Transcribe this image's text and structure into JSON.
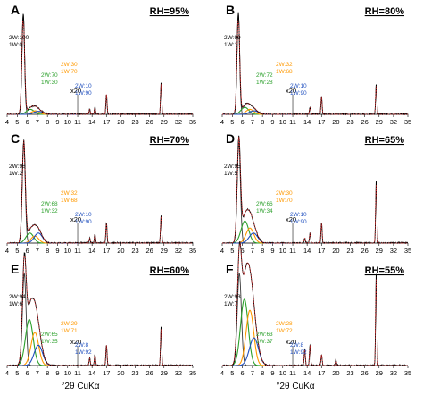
{
  "colors": {
    "data": "#000000",
    "fit": "#d62728",
    "wl2w": "#2ca02c",
    "wl1w": "#ff9900",
    "wl0w": "#1f4fbf",
    "basal": "#3a3a3a",
    "sep": "#888888"
  },
  "chart_data": [
    {
      "type": "line",
      "panel": "A",
      "title": "RH=95%",
      "xlabel": "",
      "ylabel": "",
      "xlim": [
        4,
        35
      ],
      "break_after": 11,
      "ticks_left": [
        4,
        5,
        6,
        7,
        8,
        9,
        10,
        11
      ],
      "ticks_right": [
        11,
        14,
        17,
        20,
        23,
        26,
        29,
        32,
        35
      ],
      "scale_label": "x20",
      "annotations": [
        {
          "lines": [
            "2W:100",
            "1W:0"
          ],
          "color": "data"
        },
        {
          "lines": [
            "2W:70",
            "1W:30"
          ],
          "color": "wl2w"
        },
        {
          "lines": [
            "2W:30",
            "1W:70"
          ],
          "color": "wl1w"
        },
        {
          "lines": [
            "2W:10",
            "1W:90"
          ],
          "color": "wl0w"
        }
      ],
      "peaks": [
        {
          "name": "2W:100 1W:0",
          "center": 5.6,
          "amp": 1.0,
          "width": 0.13
        },
        {
          "name": "2W:70 1W:30",
          "center": 6.3,
          "amp": 0.05,
          "width": 0.38
        },
        {
          "name": "2W:30 1W:70",
          "center": 6.8,
          "amp": 0.035,
          "width": 0.38
        },
        {
          "name": "2W:10 1W:90",
          "center": 7.1,
          "amp": 0.03,
          "width": 0.45
        }
      ],
      "hk_peaks": [
        {
          "center": 13.5,
          "amp": 0.05
        },
        {
          "center": 14.6,
          "amp": 0.07
        },
        {
          "center": 17.0,
          "amp": 0.2
        },
        {
          "center": 28.4,
          "amp": 0.32
        }
      ]
    },
    {
      "type": "line",
      "panel": "B",
      "title": "RH=80%",
      "xlabel": "",
      "ylabel": "",
      "xlim": [
        4,
        35
      ],
      "break_after": 11,
      "ticks_left": [
        4,
        5,
        6,
        7,
        8,
        9,
        10,
        11
      ],
      "ticks_right": [
        11,
        14,
        17,
        20,
        23,
        26,
        29,
        32,
        35
      ],
      "scale_label": "x20",
      "annotations": [
        {
          "lines": [
            "2W:99",
            "1W:1"
          ],
          "color": "data"
        },
        {
          "lines": [
            "2W:72",
            "1W:28"
          ],
          "color": "wl2w"
        },
        {
          "lines": [
            "2W:32",
            "1W:68"
          ],
          "color": "wl1w"
        },
        {
          "lines": [
            "2W:10",
            "1W:90"
          ],
          "color": "wl0w"
        }
      ],
      "peaks": [
        {
          "name": "2W:99 1W:1",
          "center": 5.6,
          "amp": 1.0,
          "width": 0.13
        },
        {
          "name": "2W:72 1W:28",
          "center": 6.25,
          "amp": 0.07,
          "width": 0.38
        },
        {
          "name": "2W:32 1W:68",
          "center": 6.75,
          "amp": 0.05,
          "width": 0.38
        },
        {
          "name": "2W:10 1W:90",
          "center": 7.15,
          "amp": 0.035,
          "width": 0.45
        }
      ],
      "hk_peaks": [
        {
          "center": 14.6,
          "amp": 0.07
        },
        {
          "center": 17.0,
          "amp": 0.18
        },
        {
          "center": 28.4,
          "amp": 0.3
        }
      ]
    },
    {
      "type": "line",
      "panel": "C",
      "title": "RH=70%",
      "xlabel": "",
      "ylabel": "",
      "xlim": [
        4,
        35
      ],
      "break_after": 11,
      "ticks_left": [
        4,
        5,
        6,
        7,
        8,
        9,
        10,
        11
      ],
      "ticks_right": [
        11,
        14,
        17,
        20,
        23,
        26,
        29,
        32,
        35
      ],
      "scale_label": "x20",
      "annotations": [
        {
          "lines": [
            "2W:98",
            "1W:2"
          ],
          "color": "data"
        },
        {
          "lines": [
            "2W:68",
            "1W:32"
          ],
          "color": "wl2w"
        },
        {
          "lines": [
            "2W:32",
            "1W:68"
          ],
          "color": "wl1w"
        },
        {
          "lines": [
            "2W:10",
            "1W:90"
          ],
          "color": "wl0w"
        }
      ],
      "peaks": [
        {
          "name": "2W:98 1W:2",
          "center": 5.65,
          "amp": 1.0,
          "width": 0.15
        },
        {
          "name": "2W:68 1W:32",
          "center": 6.25,
          "amp": 0.1,
          "width": 0.38
        },
        {
          "name": "2W:32 1W:68",
          "center": 6.75,
          "amp": 0.07,
          "width": 0.38
        },
        {
          "name": "2W:10 1W:90",
          "center": 7.1,
          "amp": 0.1,
          "width": 0.4
        }
      ],
      "hk_peaks": [
        {
          "center": 13.5,
          "amp": 0.05
        },
        {
          "center": 14.6,
          "amp": 0.09
        },
        {
          "center": 17.0,
          "amp": 0.2
        },
        {
          "center": 28.4,
          "amp": 0.28
        }
      ]
    },
    {
      "type": "line",
      "panel": "D",
      "title": "RH=65%",
      "xlabel": "",
      "ylabel": "",
      "xlim": [
        4,
        35
      ],
      "break_after": 11,
      "ticks_left": [
        4,
        5,
        6,
        7,
        8,
        9,
        10,
        11
      ],
      "ticks_right": [
        11,
        14,
        17,
        20,
        23,
        26,
        29,
        32,
        35
      ],
      "scale_label": "x20",
      "annotations": [
        {
          "lines": [
            "2W:95",
            "1W:5"
          ],
          "color": "data"
        },
        {
          "lines": [
            "2W:66",
            "1W:34"
          ],
          "color": "wl2w"
        },
        {
          "lines": [
            "2W:30",
            "1W:70"
          ],
          "color": "wl1w"
        },
        {
          "lines": [
            "2W:10",
            "1W:90"
          ],
          "color": "wl0w"
        }
      ],
      "peaks": [
        {
          "name": "2W:95 1W:5",
          "center": 5.65,
          "amp": 1.0,
          "width": 0.16
        },
        {
          "name": "2W:66 1W:34",
          "center": 6.25,
          "amp": 0.22,
          "width": 0.38
        },
        {
          "name": "2W:30 1W:70",
          "center": 6.75,
          "amp": 0.15,
          "width": 0.38
        },
        {
          "name": "2W:10 1W:90",
          "center": 7.1,
          "amp": 0.1,
          "width": 0.42
        }
      ],
      "hk_peaks": [
        {
          "center": 13.5,
          "amp": 0.05
        },
        {
          "center": 14.6,
          "amp": 0.1
        },
        {
          "center": 17.0,
          "amp": 0.2
        },
        {
          "center": 28.4,
          "amp": 0.62
        }
      ]
    },
    {
      "type": "line",
      "panel": "E",
      "title": "RH=60%",
      "xlabel": "°2θ CuKα",
      "ylabel": "",
      "xlim": [
        4,
        35
      ],
      "break_after": 11,
      "ticks_left": [
        4,
        5,
        6,
        7,
        8,
        9,
        10,
        11
      ],
      "ticks_right": [
        11,
        14,
        17,
        20,
        23,
        26,
        29,
        32,
        35
      ],
      "scale_label": "x20",
      "annotations": [
        {
          "lines": [
            "2W:94",
            "1W:6"
          ],
          "color": "data"
        },
        {
          "lines": [
            "2W:65",
            "1W:35"
          ],
          "color": "wl2w"
        },
        {
          "lines": [
            "2W:29",
            "1W:71"
          ],
          "color": "wl1w"
        },
        {
          "lines": [
            "2W:8",
            "1W:92"
          ],
          "color": "wl0w"
        }
      ],
      "peaks": [
        {
          "name": "2W:94 1W:6",
          "center": 5.7,
          "amp": 1.0,
          "width": 0.18
        },
        {
          "name": "2W:65 1W:35",
          "center": 6.2,
          "amp": 0.5,
          "width": 0.38
        },
        {
          "name": "2W:29 1W:71",
          "center": 6.75,
          "amp": 0.36,
          "width": 0.38
        },
        {
          "name": "2W:8 1W:92",
          "center": 7.1,
          "amp": 0.22,
          "width": 0.42
        }
      ],
      "hk_peaks": [
        {
          "center": 13.5,
          "amp": 0.08
        },
        {
          "center": 14.6,
          "amp": 0.12
        },
        {
          "center": 17.0,
          "amp": 0.22
        },
        {
          "center": 28.4,
          "amp": 0.42
        }
      ]
    },
    {
      "type": "line",
      "panel": "F",
      "title": "RH=55%",
      "xlabel": "°2θ CuKα",
      "ylabel": "",
      "xlim": [
        4,
        35
      ],
      "break_after": 11,
      "ticks_left": [
        4,
        5,
        6,
        7,
        8,
        9,
        10,
        11
      ],
      "ticks_right": [
        11,
        14,
        17,
        20,
        23,
        26,
        29,
        32,
        35
      ],
      "scale_label": "x20",
      "annotations": [
        {
          "lines": [
            "2W:93",
            "1W:7"
          ],
          "color": "data"
        },
        {
          "lines": [
            "2W:63",
            "1W:37"
          ],
          "color": "wl2w"
        },
        {
          "lines": [
            "2W:28",
            "1W:72"
          ],
          "color": "wl1w"
        },
        {
          "lines": [
            "2W:8",
            "1W:92"
          ],
          "color": "wl0w"
        }
      ],
      "peaks": [
        {
          "name": "2W:93 1W:7",
          "center": 5.7,
          "amp": 1.0,
          "width": 0.2
        },
        {
          "name": "2W:63 1W:37",
          "center": 6.2,
          "amp": 0.72,
          "width": 0.38
        },
        {
          "name": "2W:28 1W:72",
          "center": 6.75,
          "amp": 0.6,
          "width": 0.38
        },
        {
          "name": "2W:8 1W:92",
          "center": 7.15,
          "amp": 0.3,
          "width": 0.45
        }
      ],
      "hk_peaks": [
        {
          "center": 13.5,
          "amp": 0.18
        },
        {
          "center": 14.6,
          "amp": 0.22
        },
        {
          "center": 17.0,
          "amp": 0.12
        },
        {
          "center": 20.0,
          "amp": 0.06
        },
        {
          "center": 28.4,
          "amp": 1.0
        }
      ]
    }
  ]
}
